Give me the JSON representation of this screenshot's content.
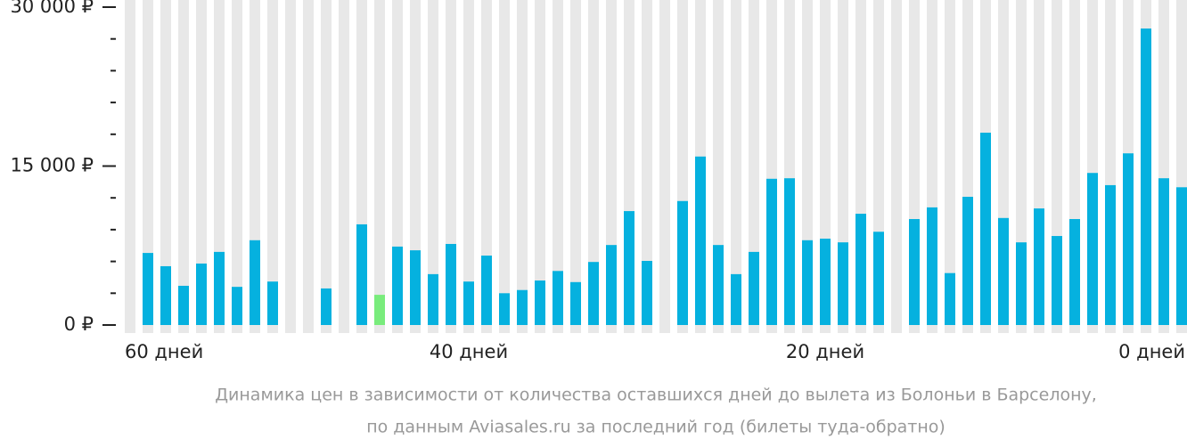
{
  "chart_data": {
    "type": "bar",
    "caption": [
      "Динамика цен в зависимости от количества оставшихся дней до вылета из Болоньи в Барселону,",
      "по данным Aviasales.ru за последний год (билеты туда-обратно)"
    ],
    "categories": [
      "60 дней",
      null,
      null,
      null,
      null,
      null,
      null,
      null,
      null,
      null,
      null,
      null,
      null,
      null,
      null,
      null,
      null,
      null,
      null,
      "40 дней",
      null,
      null,
      null,
      null,
      null,
      null,
      null,
      null,
      null,
      null,
      null,
      null,
      null,
      null,
      null,
      null,
      null,
      null,
      null,
      "20 дней",
      null,
      null,
      null,
      null,
      null,
      null,
      null,
      null,
      null,
      null,
      null,
      null,
      null,
      null,
      null,
      null,
      null,
      null,
      null,
      "0 дней"
    ],
    "values": [
      null,
      6800,
      5550,
      3700,
      5800,
      6900,
      3600,
      8000,
      4100,
      null,
      null,
      3450,
      null,
      9500,
      2850,
      7400,
      7050,
      4800,
      7650,
      4100,
      6550,
      3000,
      3300,
      4200,
      5100,
      4050,
      5950,
      7550,
      10750,
      6050,
      null,
      11700,
      15900,
      7550,
      4800,
      6900,
      13800,
      13850,
      8000,
      8150,
      7800,
      10500,
      8800,
      null,
      10000,
      11100,
      4900,
      12100,
      18150,
      10100,
      7800,
      11000,
      8400,
      10000,
      14350,
      13200,
      16200,
      27980,
      13850,
      13000
    ],
    "color": "#05b1df",
    "min_color": "#79ec7c",
    "stripe_color": "#e8e8e8",
    "ylim": [
      0,
      30000
    ],
    "yticks": [
      {
        "value": 0,
        "label": "0 ₽"
      },
      {
        "value": 15000,
        "label": "15 000 ₽"
      },
      {
        "value": 30000,
        "label": "30 000 ₽"
      }
    ],
    "yticks_minor": [
      3000,
      6000,
      9000,
      12000,
      18000,
      21000,
      24000,
      27000
    ]
  }
}
